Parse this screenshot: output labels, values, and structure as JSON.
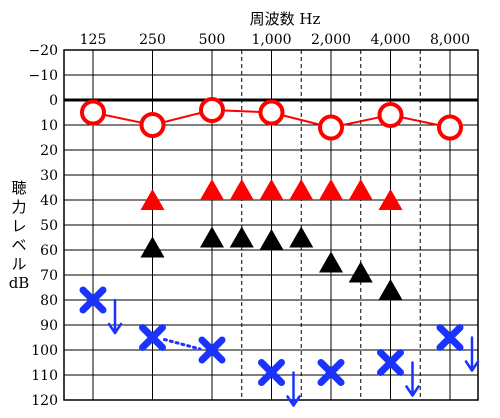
{
  "chart_data": {
    "type": "scatter",
    "title": "周波数 Hz",
    "ylabel": "聴力レベル dB",
    "ylabel_lines": [
      "聴",
      "力",
      "レ",
      "ベ",
      "ル",
      "dB"
    ],
    "x_tick_labels": [
      "125",
      "250",
      "500",
      "1,000",
      "2,000",
      "4,000",
      "8,000"
    ],
    "y_tick_labels": [
      "−20",
      "−10",
      "0",
      "10",
      "20",
      "30",
      "40",
      "50",
      "60",
      "70",
      "80",
      "90",
      "100",
      "110",
      "120"
    ],
    "y_ticks": [
      -20,
      -10,
      0,
      10,
      20,
      30,
      40,
      50,
      60,
      70,
      80,
      90,
      100,
      110,
      120
    ],
    "x_octave_positions": [
      0,
      1,
      2,
      3,
      4,
      5,
      6
    ],
    "x_half_octave_positions": [
      2.5,
      3.5,
      4.5,
      5.5
    ],
    "ylim": [
      -20,
      120
    ],
    "y_inverted": true,
    "zero_line": 0,
    "grid": true,
    "series": [
      {
        "marker": "circle",
        "color": "#ff0000",
        "connected": true,
        "points": [
          {
            "x": 0,
            "y": 5
          },
          {
            "x": 1,
            "y": 10
          },
          {
            "x": 2,
            "y": 4
          },
          {
            "x": 3,
            "y": 5
          },
          {
            "x": 4,
            "y": 11
          },
          {
            "x": 5,
            "y": 6
          },
          {
            "x": 6,
            "y": 11
          }
        ]
      },
      {
        "marker": "triangle",
        "color": "#ff0000",
        "connected": false,
        "points": [
          {
            "x": 1,
            "y": 40
          },
          {
            "x": 2,
            "y": 36
          },
          {
            "x": 2.5,
            "y": 36
          },
          {
            "x": 3,
            "y": 36
          },
          {
            "x": 3.5,
            "y": 36
          },
          {
            "x": 4,
            "y": 36
          },
          {
            "x": 4.5,
            "y": 36
          },
          {
            "x": 5,
            "y": 40
          }
        ]
      },
      {
        "marker": "triangle",
        "color": "#000000",
        "connected": false,
        "points": [
          {
            "x": 1,
            "y": 59
          },
          {
            "x": 2,
            "y": 55
          },
          {
            "x": 2.5,
            "y": 55
          },
          {
            "x": 3,
            "y": 56
          },
          {
            "x": 3.5,
            "y": 55
          },
          {
            "x": 4,
            "y": 65
          },
          {
            "x": 4.5,
            "y": 69
          },
          {
            "x": 5,
            "y": 76
          }
        ]
      },
      {
        "marker": "cross",
        "color": "#1a33ff",
        "connected": false,
        "points": [
          {
            "x": 0,
            "y": 80,
            "arrow": true
          },
          {
            "x": 1,
            "y": 95
          },
          {
            "x": 2,
            "y": 100
          },
          {
            "x": 3,
            "y": 109,
            "arrow": true
          },
          {
            "x": 4,
            "y": 109
          },
          {
            "x": 5,
            "y": 105,
            "arrow": true
          },
          {
            "x": 6,
            "y": 95,
            "arrow": true
          }
        ],
        "dotted_link": [
          1,
          2
        ]
      }
    ]
  }
}
